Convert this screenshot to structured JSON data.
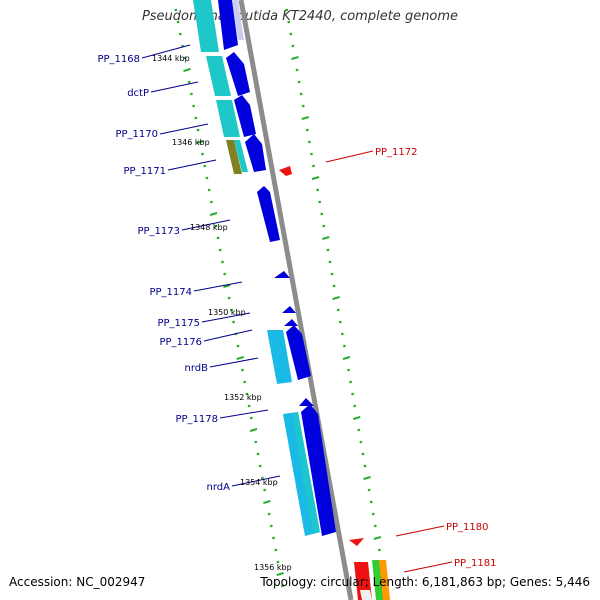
{
  "title": "Pseudomonas putida KT2440, complete genome",
  "footer": {
    "accession": "Accession: NC_002947",
    "stats": "Topology: circular; Length: 6,181,863 bp; Genes: 5,446"
  },
  "colors": {
    "backbone": "#8c8c8c",
    "forward_label": "#00008b",
    "reverse_label": "#cc0000",
    "gene_dark": "#0000dd",
    "gene_light": "#1ab9e6",
    "gene_teal": "#1ec8c8",
    "gene_olive": "#808020",
    "reverse_gene": "#ee1111",
    "dots": "#22aa22"
  },
  "scale_labels": [
    "1344 kbp",
    "1346 kbp",
    "1348 kbp",
    "1350 kbp",
    "1352 kbp",
    "1354 kbp",
    "1356 kbp"
  ],
  "gene_labels": [
    "PP_1168",
    "dctP",
    "PP_1170",
    "PP_1171",
    "PP_1173",
    "PP_1174",
    "PP_1175",
    "PP_1176",
    "nrdB",
    "PP_1178",
    "nrdA",
    "PP_1172",
    "PP_1180",
    "PP_1181"
  ]
}
